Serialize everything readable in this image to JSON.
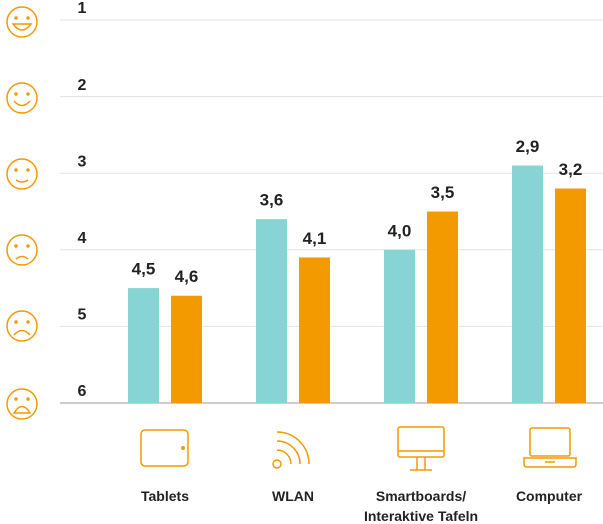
{
  "chart_data": {
    "type": "bar",
    "categories": [
      "Tablets",
      "WLAN",
      "Smartboards/ Interaktive Tafeln",
      "Computer"
    ],
    "series": [
      {
        "color": "#86d4d4",
        "values": [
          4.5,
          3.6,
          4.0,
          2.9
        ],
        "value_labels": [
          "4,5",
          "3,6",
          "4,0",
          "2,9"
        ]
      },
      {
        "color": "#f39a00",
        "values": [
          4.6,
          4.1,
          3.5,
          3.2
        ],
        "value_labels": [
          "4,6",
          "4,1",
          "3,5",
          "3,2"
        ]
      }
    ],
    "ylim": [
      6,
      1
    ],
    "yticks": [
      1,
      2,
      3,
      4,
      5,
      6
    ],
    "grid": true
  }
}
